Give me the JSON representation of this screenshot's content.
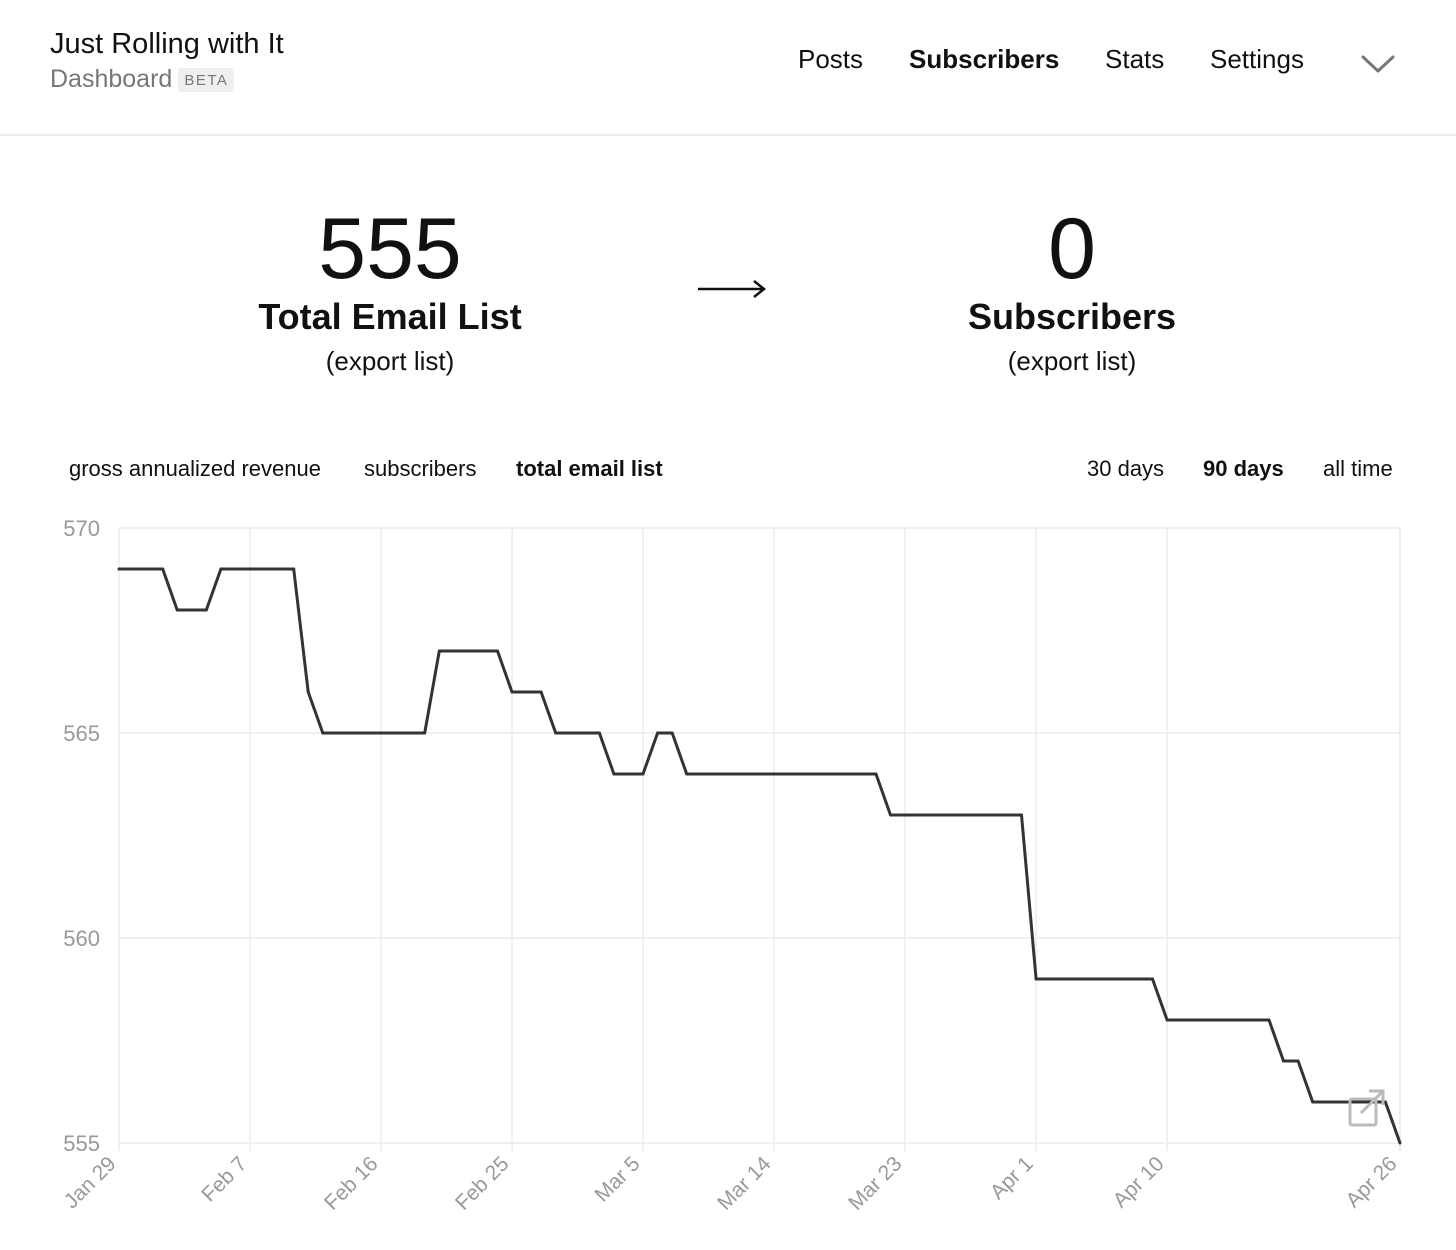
{
  "brand": {
    "title": "Just Rolling with It",
    "subtitle": "Dashboard",
    "badge": "BETA"
  },
  "nav": {
    "items": [
      "Posts",
      "Subscribers",
      "Stats",
      "Settings"
    ],
    "active": "Subscribers",
    "menu_icon": "chevron-down-icon"
  },
  "stats": {
    "left": {
      "value": "555",
      "label": "Total Email List",
      "link": "(export list)"
    },
    "right": {
      "value": "0",
      "label": "Subscribers",
      "link": "(export list)"
    },
    "arrow_icon": "right-arrow-icon"
  },
  "metric_tabs": {
    "items": [
      "gross annualized revenue",
      "subscribers",
      "total email list"
    ],
    "active": "total email list"
  },
  "range_tabs": {
    "items": [
      "30 days",
      "90 days",
      "all time"
    ],
    "active": "90 days"
  },
  "chart_data": {
    "type": "line",
    "title": "",
    "xlabel": "",
    "ylabel": "",
    "ylim": [
      555,
      570
    ],
    "yticks": [
      570,
      565,
      560,
      555
    ],
    "xticks": [
      "Jan 29",
      "Feb 7",
      "Feb 16",
      "Feb 25",
      "Mar 5",
      "Mar 14",
      "Mar 23",
      "Apr 1",
      "Apr 10",
      "Apr 26"
    ],
    "grid": true,
    "series": [
      {
        "name": "",
        "x": [
          "Jan 29",
          "Jan 30",
          "Jan 31",
          "Feb 1",
          "Feb 2",
          "Feb 3",
          "Feb 4",
          "Feb 5",
          "Feb 6",
          "Feb 7",
          "Feb 8",
          "Feb 9",
          "Feb 10",
          "Feb 11",
          "Feb 12",
          "Feb 13",
          "Feb 14",
          "Feb 15",
          "Feb 16",
          "Feb 17",
          "Feb 18",
          "Feb 19",
          "Feb 20",
          "Feb 21",
          "Feb 22",
          "Feb 23",
          "Feb 24",
          "Feb 25",
          "Feb 26",
          "Feb 27",
          "Feb 28",
          "Feb 29",
          "Mar 1",
          "Mar 2",
          "Mar 3",
          "Mar 4",
          "Mar 5",
          "Mar 6",
          "Mar 7",
          "Mar 8",
          "Mar 9",
          "Mar 10",
          "Mar 11",
          "Mar 12",
          "Mar 13",
          "Mar 14",
          "Mar 15",
          "Mar 16",
          "Mar 17",
          "Mar 18",
          "Mar 19",
          "Mar 20",
          "Mar 21",
          "Mar 22",
          "Mar 23",
          "Mar 24",
          "Mar 25",
          "Mar 26",
          "Mar 27",
          "Mar 28",
          "Mar 29",
          "Mar 30",
          "Mar 31",
          "Apr 1",
          "Apr 2",
          "Apr 3",
          "Apr 4",
          "Apr 5",
          "Apr 6",
          "Apr 7",
          "Apr 8",
          "Apr 9",
          "Apr 10",
          "Apr 11",
          "Apr 12",
          "Apr 13",
          "Apr 14",
          "Apr 15",
          "Apr 16",
          "Apr 17",
          "Apr 18",
          "Apr 19",
          "Apr 20",
          "Apr 21",
          "Apr 22",
          "Apr 23",
          "Apr 24",
          "Apr 25",
          "Apr 26"
        ],
        "values": [
          569,
          569,
          569,
          569,
          568,
          568,
          568,
          569,
          569,
          569,
          569,
          569,
          569,
          566,
          565,
          565,
          565,
          565,
          565,
          565,
          565,
          565,
          567,
          567,
          567,
          567,
          567,
          566,
          566,
          566,
          565,
          565,
          565,
          565,
          564,
          564,
          564,
          565,
          565,
          564,
          564,
          564,
          564,
          564,
          564,
          564,
          564,
          564,
          564,
          564,
          564,
          564,
          564,
          563,
          563,
          563,
          563,
          563,
          563,
          563,
          563,
          563,
          563,
          559,
          559,
          559,
          559,
          559,
          559,
          559,
          559,
          559,
          558,
          558,
          558,
          558,
          558,
          558,
          558,
          558,
          557,
          557,
          556,
          556,
          556,
          556,
          556,
          556,
          555
        ]
      }
    ]
  },
  "chart_action_icon": "open-external-icon"
}
